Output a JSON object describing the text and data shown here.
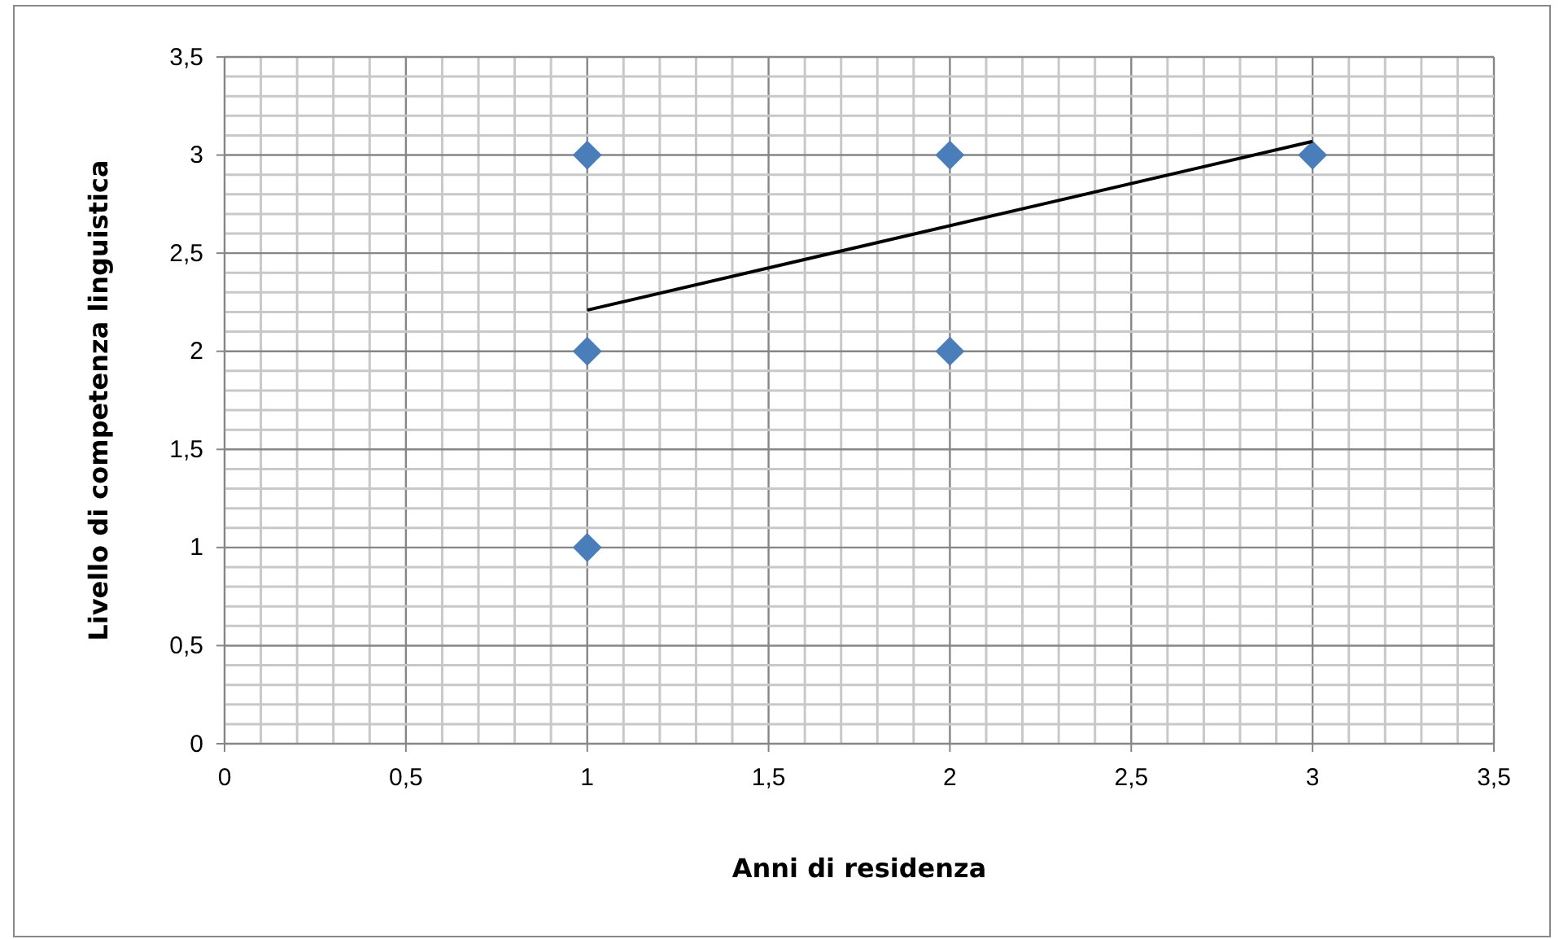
{
  "chart_data": {
    "type": "scatter",
    "xlabel": "Anni di residenza",
    "ylabel": "Livello di competenza  linguistica",
    "xlim": [
      0,
      3.5
    ],
    "ylim": [
      0,
      3.5
    ],
    "xticks": [
      0,
      {
        "value": 0.1,
        "label": null
      },
      {
        "value": 0.2,
        "label": null
      },
      {
        "value": 0.3,
        "label": null
      },
      {
        "value": 0.4,
        "label": null
      },
      {
        "value": 0.5,
        "label": "0,5"
      },
      {
        "value": 0.6,
        "label": null
      },
      {
        "value": 0.7,
        "label": null
      },
      {
        "value": 0.8,
        "label": null
      },
      {
        "value": 0.9,
        "label": null
      },
      1,
      {
        "value": 1.1,
        "label": null
      },
      {
        "value": 1.2,
        "label": null
      },
      {
        "value": 1.3,
        "label": null
      },
      {
        "value": 1.4,
        "label": null
      },
      {
        "value": 1.5,
        "label": "1,5"
      },
      {
        "value": 1.6,
        "label": null
      },
      {
        "value": 1.7,
        "label": null
      },
      {
        "value": 1.8,
        "label": null
      },
      {
        "value": 1.9,
        "label": null
      },
      2,
      {
        "value": 2.1,
        "label": null
      },
      {
        "value": 2.2,
        "label": null
      },
      {
        "value": 2.3,
        "label": null
      },
      {
        "value": 2.4,
        "label": null
      },
      {
        "value": 2.5,
        "label": "2,5"
      },
      {
        "value": 2.6,
        "label": null
      },
      {
        "value": 2.7,
        "label": null
      },
      {
        "value": 2.8,
        "label": null
      },
      {
        "value": 2.9,
        "label": null
      },
      3,
      {
        "value": 3.1,
        "label": null
      },
      {
        "value": 3.2,
        "label": null
      },
      {
        "value": 3.3,
        "label": null
      },
      {
        "value": 3.4,
        "label": null
      },
      {
        "value": 3.5,
        "label": "3,5"
      }
    ],
    "yticks": [
      0,
      {
        "value": 0.1,
        "label": null
      },
      {
        "value": 0.2,
        "label": null
      },
      {
        "value": 0.3,
        "label": null
      },
      {
        "value": 0.4,
        "label": null
      },
      {
        "value": 0.5,
        "label": "0,5"
      },
      {
        "value": 0.6,
        "label": null
      },
      {
        "value": 0.7,
        "label": null
      },
      {
        "value": 0.8,
        "label": null
      },
      {
        "value": 0.9,
        "label": null
      },
      1,
      {
        "value": 1.1,
        "label": null
      },
      {
        "value": 1.2,
        "label": null
      },
      {
        "value": 1.3,
        "label": null
      },
      {
        "value": 1.4,
        "label": null
      },
      {
        "value": 1.5,
        "label": "1,5"
      },
      {
        "value": 1.6,
        "label": null
      },
      {
        "value": 1.7,
        "label": null
      },
      {
        "value": 1.8,
        "label": null
      },
      {
        "value": 1.9,
        "label": null
      },
      2,
      {
        "value": 2.1,
        "label": null
      },
      {
        "value": 2.2,
        "label": null
      },
      {
        "value": 2.3,
        "label": null
      },
      {
        "value": 2.4,
        "label": null
      },
      {
        "value": 2.5,
        "label": "2,5"
      },
      {
        "value": 2.6,
        "label": null
      },
      {
        "value": 2.7,
        "label": null
      },
      {
        "value": 2.8,
        "label": null
      },
      {
        "value": 2.9,
        "label": null
      },
      3,
      {
        "value": 3.1,
        "label": null
      },
      {
        "value": 3.2,
        "label": null
      },
      {
        "value": 3.3,
        "label": null
      },
      {
        "value": 3.4,
        "label": null
      },
      {
        "value": 3.5,
        "label": "3,5"
      }
    ],
    "grid": true,
    "series": [
      {
        "color": "#4a7ebb",
        "marker": "diamond",
        "x": [
          1,
          1,
          1,
          2,
          2,
          3
        ],
        "values": [
          3,
          2,
          1,
          3,
          2,
          3
        ]
      },
      {
        "type": "line",
        "color": "#000000",
        "line_style": "solid",
        "marker": "none",
        "x": [
          1,
          3
        ],
        "values": [
          2.21,
          3.07
        ]
      }
    ]
  }
}
